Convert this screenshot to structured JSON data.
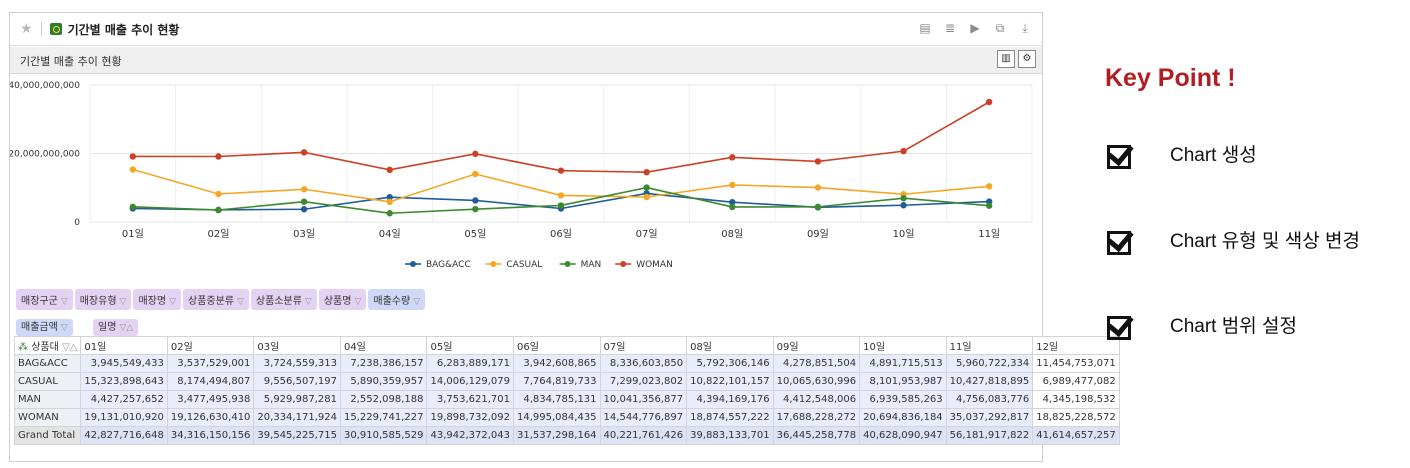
{
  "window": {
    "title": "기간별 매출 추이 현황",
    "toolbar_icons": [
      "report-icon",
      "database-icon",
      "play-icon",
      "export-icon",
      "download-icon"
    ]
  },
  "panel": {
    "subtitle": "기간별 매출 추이 현황",
    "subicons": [
      "chart-toggle-icon",
      "settings-icon"
    ]
  },
  "chart_data": {
    "type": "line",
    "categories": [
      "01일",
      "02일",
      "03일",
      "04일",
      "05일",
      "06일",
      "07일",
      "08일",
      "09일",
      "10일",
      "11일"
    ],
    "yticks": [
      "40,000,000,000",
      "20,000,000,000",
      "0"
    ],
    "ylim": [
      0,
      40000000000
    ],
    "series": [
      {
        "name": "BAG&ACC",
        "color": "#1f5c99",
        "values": [
          3945549433,
          3537529001,
          3724559313,
          7238386157,
          6283889171,
          3942608865,
          8336603850,
          5792306146,
          4278851504,
          4891715513,
          5960722334
        ]
      },
      {
        "name": "CASUAL",
        "color": "#f5a623",
        "values": [
          15323898643,
          8174494807,
          9556507197,
          5890359957,
          14006129079,
          7764819733,
          7299023802,
          10822101157,
          10065630996,
          8101953987,
          10427818895
        ]
      },
      {
        "name": "MAN",
        "color": "#3c8a2e",
        "values": [
          4427257652,
          3477495938,
          5929987281,
          2552098188,
          3753621701,
          4834785131,
          10041356877,
          4394169176,
          4412548006,
          6939585263,
          4756083776
        ]
      },
      {
        "name": "WOMAN",
        "color": "#cc4125",
        "values": [
          19131010920,
          19126630410,
          20334171924,
          15229741227,
          19898732092,
          14995084435,
          14544776897,
          18874557222,
          17688228272,
          20694836184,
          35037292817
        ]
      }
    ],
    "legend_position": "bottom",
    "grid": true
  },
  "pivot": {
    "filter_fields": [
      "매장구군",
      "매장유형",
      "매장명",
      "상품중분류",
      "상품소분류",
      "상품명",
      "매출수량"
    ],
    "data_field": "매출금액",
    "col_field": "일명",
    "row_field": "상품대",
    "columns": [
      "01일",
      "02일",
      "03일",
      "04일",
      "05일",
      "06일",
      "07일",
      "08일",
      "09일",
      "10일",
      "11일",
      "12일"
    ],
    "rows": [
      {
        "label": "BAG&ACC",
        "values": [
          "3,945,549,433",
          "3,537,529,001",
          "3,724,559,313",
          "7,238,386,157",
          "6,283,889,171",
          "3,942,608,865",
          "8,336,603,850",
          "5,792,306,146",
          "4,278,851,504",
          "4,891,715,513",
          "5,960,722,334",
          "11,454,753,071"
        ]
      },
      {
        "label": "CASUAL",
        "values": [
          "15,323,898,643",
          "8,174,494,807",
          "9,556,507,197",
          "5,890,359,957",
          "14,006,129,079",
          "7,764,819,733",
          "7,299,023,802",
          "10,822,101,157",
          "10,065,630,996",
          "8,101,953,987",
          "10,427,818,895",
          "6,989,477,082"
        ]
      },
      {
        "label": "MAN",
        "values": [
          "4,427,257,652",
          "3,477,495,938",
          "5,929,987,281",
          "2,552,098,188",
          "3,753,621,701",
          "4,834,785,131",
          "10,041,356,877",
          "4,394,169,176",
          "4,412,548,006",
          "6,939,585,263",
          "4,756,083,776",
          "4,345,198,532"
        ]
      },
      {
        "label": "WOMAN",
        "values": [
          "19,131,010,920",
          "19,126,630,410",
          "20,334,171,924",
          "15,229,741,227",
          "19,898,732,092",
          "14,995,084,435",
          "14,544,776,897",
          "18,874,557,222",
          "17,688,228,272",
          "20,694,836,184",
          "35,037,292,817",
          "18,825,228,572"
        ]
      },
      {
        "label": "Grand Total",
        "values": [
          "42,827,716,648",
          "34,316,150,156",
          "39,545,225,715",
          "30,910,585,529",
          "43,942,372,043",
          "31,537,298,164",
          "40,221,761,426",
          "39,883,133,701",
          "36,445,258,778",
          "40,628,090,947",
          "56,181,917,822",
          "41,614,657,257"
        ]
      }
    ]
  },
  "keypoint": {
    "title": "Key Point !",
    "items": [
      "Chart 생성",
      "Chart 유형 및 색상 변경",
      "Chart 범위 설정"
    ]
  }
}
